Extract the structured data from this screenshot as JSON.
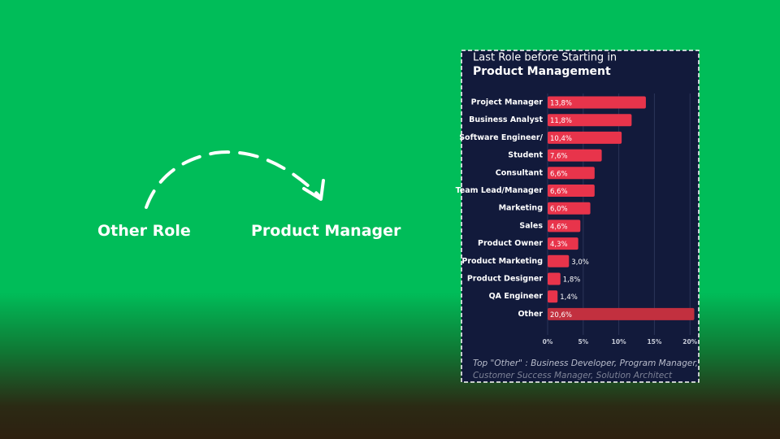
{
  "labels": {
    "from": "Other Role",
    "to": "Product Manager"
  },
  "chart_data": {
    "type": "bar",
    "orientation": "horizontal",
    "title": "Last Role before Starting in",
    "subtitle": "Product Management",
    "categories": [
      "Project Manager",
      "Business Analyst",
      "Software Engineer/",
      "Student",
      "Consultant",
      "Team Lead/Manager",
      "Marketing",
      "Sales",
      "Product Owner",
      "Product Marketing",
      "Product Designer",
      "QA Engineer",
      "Other"
    ],
    "values": [
      13.8,
      11.8,
      10.4,
      7.6,
      6.6,
      6.6,
      6.0,
      4.6,
      4.3,
      3.0,
      1.8,
      1.4,
      20.6
    ],
    "value_labels": [
      "13,8%",
      "11,8%",
      "10,4%",
      "7,6%",
      "6,6%",
      "6,6%",
      "6,0%",
      "4,6%",
      "4,3%",
      "3,0%",
      "1,8%",
      "1,4%",
      "20,6%"
    ],
    "colors": [
      "#e8344b",
      "#e8344b",
      "#e8344b",
      "#e8344b",
      "#e8344b",
      "#e8344b",
      "#e8344b",
      "#e8344b",
      "#e8344b",
      "#e8344b",
      "#e8344b",
      "#e8344b",
      "#c2303f"
    ],
    "xlim": [
      0,
      21
    ],
    "xticks": [
      {
        "value": 0,
        "label": "0%"
      },
      {
        "value": 5,
        "label": "5%"
      },
      {
        "value": 10,
        "label": "10%"
      },
      {
        "value": 15,
        "label": "15%"
      },
      {
        "value": 20,
        "label": "20%"
      }
    ],
    "grid": true,
    "footnote": [
      "Top \"Other\" : Business Developer, Program Manager,",
      "Customer Success Manager, Solution Architect"
    ]
  }
}
